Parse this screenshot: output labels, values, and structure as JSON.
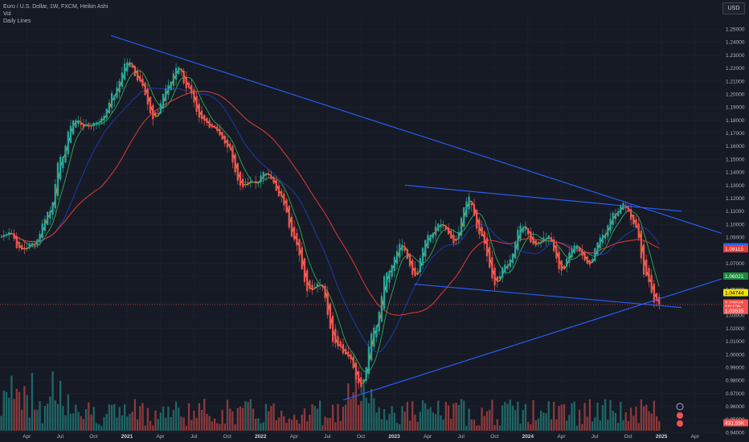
{
  "legend": {
    "title": "Euro / U.S. Dollar, 1W, FXCM, Heikin Ashi",
    "line2": "Vol",
    "line3": "Daily Lines"
  },
  "currency_button": "USD",
  "colors": {
    "background": "#161a25",
    "up": "#26a69a",
    "down": "#ef5350",
    "trendline": "#2962ff",
    "ema_fast": "#f5a623",
    "ema_mid": "#2e9e4e",
    "ma_slow": "#e53935",
    "ma_blue": "#1e3aa8"
  },
  "chart_data": {
    "type": "candlestick",
    "title": "Euro / U.S. Dollar, 1W, FXCM, Heikin Ashi",
    "y_range": [
      0.945,
      1.26
    ],
    "y_ticks": [
      "1.25000",
      "1.24000",
      "1.23000",
      "1.22000",
      "1.21000",
      "1.20000",
      "1.19000",
      "1.18000",
      "1.17000",
      "1.16000",
      "1.15000",
      "1.14000",
      "1.13000",
      "1.12000",
      "1.11000",
      "1.10000",
      "1.09000",
      "1.08000",
      "1.07000",
      "1.06000",
      "1.05000",
      "1.04000",
      "1.03000",
      "1.02000",
      "1.01000",
      "1.00000",
      "0.99000",
      "0.98000",
      "0.97000",
      "0.96000",
      "0.95000",
      "0.94000"
    ],
    "x_labels": [
      {
        "label": "Apr",
        "year": false,
        "t": 2020.25
      },
      {
        "label": "Jul",
        "year": false,
        "t": 2020.5
      },
      {
        "label": "Oct",
        "year": false,
        "t": 2020.75
      },
      {
        "label": "2021",
        "year": true,
        "t": 2021.0
      },
      {
        "label": "Apr",
        "year": false,
        "t": 2021.25
      },
      {
        "label": "Jul",
        "year": false,
        "t": 2021.5
      },
      {
        "label": "Oct",
        "year": false,
        "t": 2021.75
      },
      {
        "label": "2022",
        "year": true,
        "t": 2022.0
      },
      {
        "label": "Apr",
        "year": false,
        "t": 2022.25
      },
      {
        "label": "Jul",
        "year": false,
        "t": 2022.5
      },
      {
        "label": "Oct",
        "year": false,
        "t": 2022.75
      },
      {
        "label": "2023",
        "year": true,
        "t": 2023.0
      },
      {
        "label": "Apr",
        "year": false,
        "t": 2023.25
      },
      {
        "label": "Jul",
        "year": false,
        "t": 2023.5
      },
      {
        "label": "Oct",
        "year": false,
        "t": 2023.75
      },
      {
        "label": "2024",
        "year": true,
        "t": 2024.0
      },
      {
        "label": "Apr",
        "year": false,
        "t": 2024.25
      },
      {
        "label": "Jul",
        "year": false,
        "t": 2024.5
      },
      {
        "label": "Oct",
        "year": false,
        "t": 2024.75
      },
      {
        "label": "2025",
        "year": true,
        "t": 2025.0
      },
      {
        "label": "Apr",
        "year": false,
        "t": 2025.25
      }
    ],
    "x_range": [
      2020.05,
      2025.45
    ],
    "anchors": [
      [
        2020.05,
        1.09
      ],
      [
        2020.12,
        1.095
      ],
      [
        2020.2,
        1.08
      ],
      [
        2020.3,
        1.085
      ],
      [
        2020.42,
        1.11
      ],
      [
        2020.5,
        1.15
      ],
      [
        2020.6,
        1.18
      ],
      [
        2020.7,
        1.175
      ],
      [
        2020.8,
        1.18
      ],
      [
        2020.9,
        1.2
      ],
      [
        2021.0,
        1.225
      ],
      [
        2021.1,
        1.21
      ],
      [
        2021.2,
        1.18
      ],
      [
        2021.3,
        1.205
      ],
      [
        2021.38,
        1.222
      ],
      [
        2021.45,
        1.205
      ],
      [
        2021.55,
        1.18
      ],
      [
        2021.65,
        1.175
      ],
      [
        2021.75,
        1.16
      ],
      [
        2021.85,
        1.13
      ],
      [
        2021.95,
        1.132
      ],
      [
        2022.05,
        1.14
      ],
      [
        2022.15,
        1.12
      ],
      [
        2022.25,
        1.09
      ],
      [
        2022.35,
        1.05
      ],
      [
        2022.45,
        1.055
      ],
      [
        2022.55,
        1.01
      ],
      [
        2022.65,
        1.0
      ],
      [
        2022.75,
        0.975
      ],
      [
        2022.85,
        1.02
      ],
      [
        2022.95,
        1.065
      ],
      [
        2023.05,
        1.085
      ],
      [
        2023.15,
        1.06
      ],
      [
        2023.25,
        1.09
      ],
      [
        2023.35,
        1.1
      ],
      [
        2023.45,
        1.085
      ],
      [
        2023.55,
        1.12
      ],
      [
        2023.65,
        1.09
      ],
      [
        2023.75,
        1.055
      ],
      [
        2023.85,
        1.07
      ],
      [
        2023.95,
        1.1
      ],
      [
        2024.05,
        1.085
      ],
      [
        2024.15,
        1.09
      ],
      [
        2024.25,
        1.065
      ],
      [
        2024.35,
        1.085
      ],
      [
        2024.45,
        1.07
      ],
      [
        2024.55,
        1.09
      ],
      [
        2024.65,
        1.11
      ],
      [
        2024.72,
        1.115
      ],
      [
        2024.8,
        1.1
      ],
      [
        2024.88,
        1.06
      ],
      [
        2024.95,
        1.04
      ],
      [
        2025.0,
        1.036
      ]
    ],
    "moving_averages": [
      {
        "name": "EMA fast",
        "color_key": "ema_fast",
        "window": 3
      },
      {
        "name": "EMA mid",
        "color_key": "ema_mid",
        "window": 8
      },
      {
        "name": "MA blue",
        "color_key": "ma_blue",
        "window": 20
      },
      {
        "name": "MA slow",
        "color_key": "ma_slow",
        "window": 40
      }
    ],
    "trendlines": [
      {
        "from": [
          2020.88,
          1.245
        ],
        "to": [
          2025.45,
          1.093
        ]
      },
      {
        "from": [
          2023.08,
          1.13
        ],
        "to": [
          2025.15,
          1.11
        ]
      },
      {
        "from": [
          2023.15,
          1.054
        ],
        "to": [
          2025.15,
          1.036
        ]
      },
      {
        "from": [
          2022.62,
          0.965
        ],
        "to": [
          2025.45,
          1.058
        ]
      }
    ],
    "price_tags": [
      {
        "value": 1.08273,
        "label": "1.08273",
        "bg": "#2962ff",
        "fg": "#ffffff"
      },
      {
        "value": 1.08115,
        "label": "1.08115",
        "bg": "#e53935",
        "fg": "#ffffff"
      },
      {
        "value": 1.06021,
        "label": "1.06021",
        "bg": "#1b8a3a",
        "fg": "#ffffff"
      },
      {
        "value": 1.04744,
        "label": "1.04744",
        "bg": "#f5e400",
        "fg": "#000000"
      },
      {
        "value": 1.03945,
        "label": "1.03945",
        "bg": "#ef5350",
        "fg": "#ffffff"
      },
      {
        "value": 1.03653,
        "label": "10:12h",
        "bg": "#ef5350",
        "fg": "#ffffff"
      },
      {
        "value": 1.03361,
        "label": "1.03535",
        "bg": "#ef5350",
        "fg": "#ffffff"
      }
    ],
    "volume_tag": "431.55K",
    "volume_base_y": 536
  }
}
